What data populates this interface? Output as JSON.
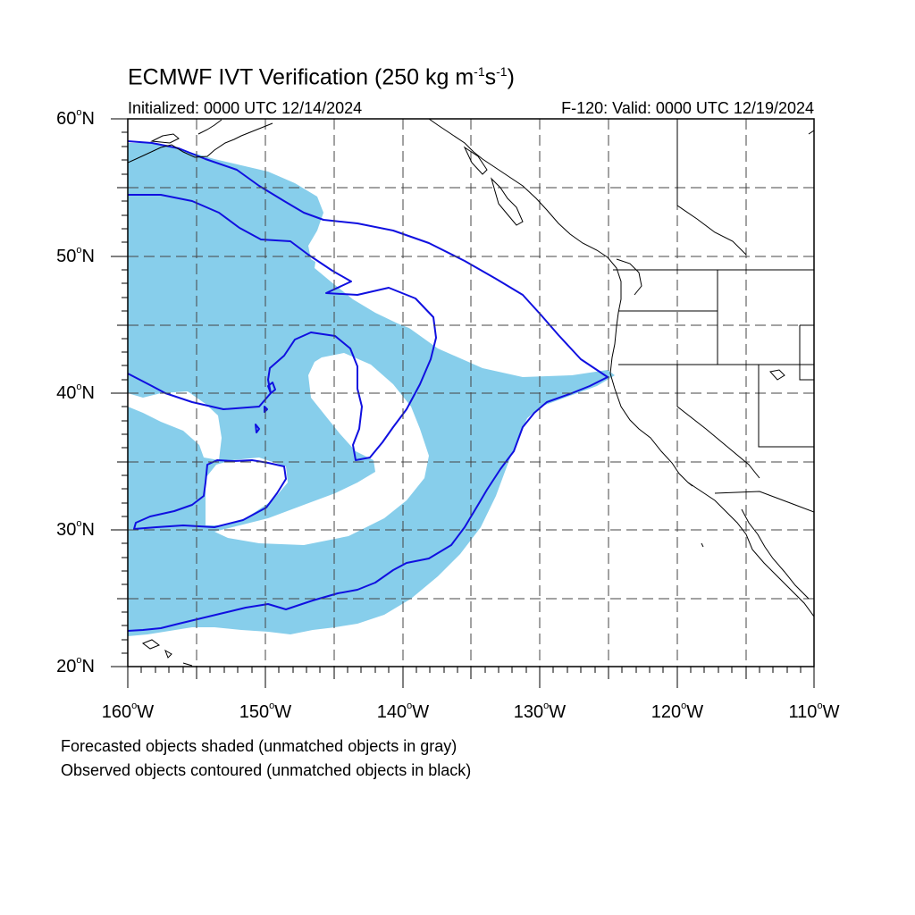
{
  "title": {
    "main": "ECMWF IVT Verification (250 kg m",
    "exp1": "-1",
    "mid": "s",
    "exp2": "-1",
    "end": ")"
  },
  "subtitle_left": "Initialized: 0000 UTC 12/14/2024",
  "subtitle_right": "F-120: Valid: 0000 UTC 12/19/2024",
  "lat_labels": [
    {
      "num": "60",
      "suffix": "N"
    },
    {
      "num": "50",
      "suffix": "N"
    },
    {
      "num": "40",
      "suffix": "N"
    },
    {
      "num": "30",
      "suffix": "N"
    },
    {
      "num": "20",
      "suffix": "N"
    }
  ],
  "lon_labels": [
    {
      "num": "160",
      "suffix": "W"
    },
    {
      "num": "150",
      "suffix": "W"
    },
    {
      "num": "140",
      "suffix": "W"
    },
    {
      "num": "130",
      "suffix": "W"
    },
    {
      "num": "120",
      "suffix": "W"
    },
    {
      "num": "110",
      "suffix": "W"
    }
  ],
  "notes": [
    "Forecasted objects shaded (unmatched objects in gray)",
    "Observed objects contoured (unmatched objects in black)"
  ],
  "colors": {
    "forecast_fill": "#87ceeb",
    "observed_contour": "#0000ee",
    "coast": "#000000",
    "grid": "#555555"
  }
}
